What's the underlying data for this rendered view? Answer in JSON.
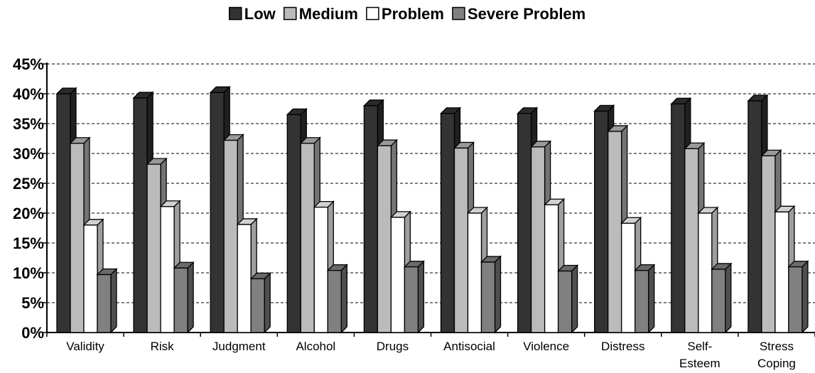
{
  "chart_data": {
    "type": "bar",
    "categories": [
      "Validity",
      "Risk",
      "Judgment",
      "Alcohol",
      "Drugs",
      "Antisocial",
      "Violence",
      "Distress",
      "Self-\nEsteem",
      "Stress\nCoping"
    ],
    "series": [
      {
        "name": "Low",
        "color": "#333333",
        "values": [
          40.0,
          39.3,
          40.2,
          36.5,
          38.0,
          36.7,
          36.7,
          37.1,
          38.3,
          38.8
        ]
      },
      {
        "name": "Medium",
        "color": "#bbbbbb",
        "values": [
          31.7,
          28.2,
          32.2,
          31.7,
          31.3,
          30.9,
          31.1,
          33.7,
          30.8,
          29.6
        ]
      },
      {
        "name": "Problem",
        "color": "#ffffff",
        "values": [
          18.0,
          21.1,
          18.1,
          21.0,
          19.3,
          20.0,
          21.4,
          18.3,
          20.0,
          20.2
        ]
      },
      {
        "name": "Severe Problem",
        "color": "#808080",
        "values": [
          9.7,
          10.8,
          9.0,
          10.4,
          11.0,
          11.8,
          10.3,
          10.4,
          10.6,
          11.0
        ]
      }
    ],
    "ylim": [
      0,
      45
    ],
    "yticks": [
      "0%",
      "5%",
      "10%",
      "15%",
      "20%",
      "25%",
      "30%",
      "35%",
      "40%",
      "45%"
    ],
    "legend_position": "top",
    "grid": "dashed horizontal",
    "style": "3d-clustered-bar"
  }
}
